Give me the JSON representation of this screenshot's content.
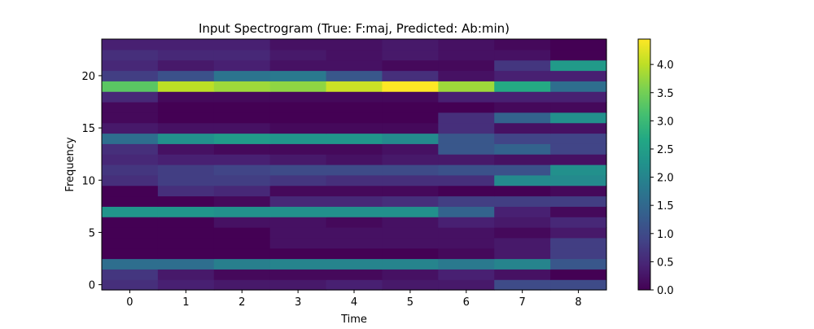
{
  "chart_data": {
    "type": "heatmap",
    "title": "Input Spectrogram (True: F:maj, Predicted: Ab:min)",
    "xlabel": "Time",
    "ylabel": "Frequency",
    "x": [
      0,
      1,
      2,
      3,
      4,
      5,
      6,
      7,
      8
    ],
    "y": [
      0,
      1,
      2,
      3,
      4,
      5,
      6,
      7,
      8,
      9,
      10,
      11,
      12,
      13,
      14,
      15,
      16,
      17,
      18,
      19,
      20,
      21,
      22,
      23
    ],
    "xticks": [
      0,
      1,
      2,
      3,
      4,
      5,
      6,
      7,
      8
    ],
    "yticks": [
      0,
      5,
      10,
      15,
      20
    ],
    "xlim": [
      -0.5,
      8.5
    ],
    "ylim": [
      -0.5,
      23.5
    ],
    "colormap": "viridis",
    "colorbar": {
      "range": [
        0.0,
        4.45
      ],
      "ticks": [
        0.0,
        0.5,
        1.0,
        1.5,
        2.0,
        2.5,
        3.0,
        3.5,
        4.0
      ],
      "tick_labels": [
        "0.0",
        "0.5",
        "1.0",
        "1.5",
        "2.0",
        "2.5",
        "3.0",
        "3.5",
        "4.0"
      ]
    },
    "grid": false,
    "z": [
      [
        0.6,
        0.4,
        0.3,
        0.3,
        0.4,
        0.3,
        0.3,
        1.0,
        1.0
      ],
      [
        0.7,
        0.3,
        0.1,
        0.1,
        0.1,
        0.2,
        0.4,
        0.2,
        0.0
      ],
      [
        1.6,
        1.6,
        1.9,
        2.0,
        2.0,
        2.0,
        1.8,
        2.0,
        1.2
      ],
      [
        0.0,
        0.0,
        0.0,
        0.0,
        0.0,
        0.0,
        0.1,
        0.3,
        0.8
      ],
      [
        0.0,
        0.0,
        0.0,
        0.2,
        0.2,
        0.2,
        0.2,
        0.3,
        0.8
      ],
      [
        0.0,
        0.0,
        0.0,
        0.2,
        0.2,
        0.2,
        0.2,
        0.1,
        0.3
      ],
      [
        0.0,
        0.0,
        0.2,
        0.2,
        0.1,
        0.2,
        0.4,
        0.3,
        0.5
      ],
      [
        2.3,
        2.3,
        2.2,
        2.2,
        2.2,
        2.2,
        1.4,
        0.4,
        0.1
      ],
      [
        0.0,
        0.0,
        0.1,
        0.5,
        0.5,
        0.6,
        0.8,
        0.8,
        0.8
      ],
      [
        0.0,
        0.6,
        0.5,
        0.1,
        0.1,
        0.1,
        0.0,
        0.0,
        0.1
      ],
      [
        0.6,
        0.8,
        0.8,
        0.7,
        0.6,
        0.6,
        0.6,
        2.1,
        2.1
      ],
      [
        0.7,
        0.8,
        0.9,
        1.0,
        1.0,
        1.0,
        1.1,
        1.1,
        2.2
      ],
      [
        0.5,
        0.4,
        0.4,
        0.3,
        0.2,
        0.3,
        0.3,
        0.2,
        0.2
      ],
      [
        0.6,
        0.2,
        0.1,
        0.1,
        0.1,
        0.2,
        1.2,
        1.4,
        0.9
      ],
      [
        1.6,
        2.2,
        2.4,
        2.3,
        2.3,
        2.1,
        1.2,
        0.9,
        0.9
      ],
      [
        0.3,
        0.2,
        0.2,
        0.1,
        0.1,
        0.1,
        0.6,
        0.2,
        0.2
      ],
      [
        0.1,
        0.0,
        0.0,
        0.0,
        0.0,
        0.0,
        0.6,
        1.4,
        2.2
      ],
      [
        0.1,
        0.0,
        0.0,
        0.0,
        0.0,
        0.0,
        0.0,
        0.1,
        0.1
      ],
      [
        0.5,
        0.1,
        0.1,
        0.1,
        0.1,
        0.1,
        0.4,
        0.4,
        0.4
      ],
      [
        3.3,
        4.0,
        3.8,
        3.7,
        4.1,
        4.45,
        3.8,
        2.7,
        1.6
      ],
      [
        0.8,
        1.1,
        1.7,
        1.8,
        1.2,
        0.6,
        0.2,
        0.4,
        0.4
      ],
      [
        0.5,
        0.3,
        0.4,
        0.2,
        0.2,
        0.1,
        0.1,
        0.7,
        2.4
      ],
      [
        0.6,
        0.5,
        0.5,
        0.3,
        0.2,
        0.3,
        0.2,
        0.2,
        0.0
      ],
      [
        0.4,
        0.4,
        0.4,
        0.2,
        0.2,
        0.3,
        0.2,
        0.1,
        0.0
      ]
    ]
  }
}
